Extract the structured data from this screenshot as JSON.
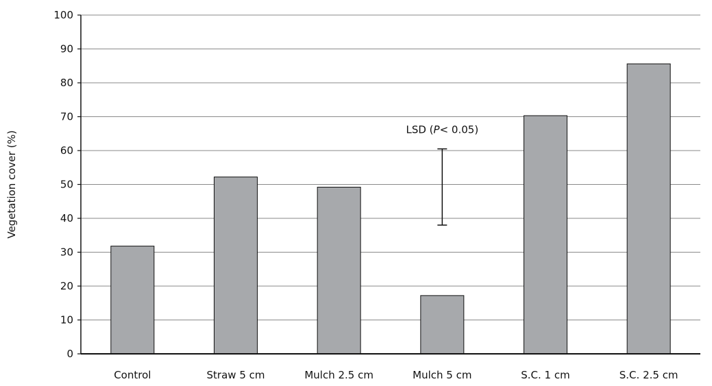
{
  "chart_data": {
    "type": "bar",
    "categories": [
      "Control",
      "Straw 5 cm",
      "Mulch 2.5 cm",
      "Mulch 5 cm",
      "S.C. 1 cm",
      "S.C. 2.5 cm"
    ],
    "values": [
      31.8,
      52.2,
      49.2,
      17.2,
      70.3,
      85.6
    ],
    "title": "",
    "xlabel": "",
    "ylabel": "Vegetation cover (%)",
    "ylim": [
      0,
      100
    ],
    "yticks": [
      0,
      10,
      20,
      30,
      40,
      50,
      60,
      70,
      80,
      90,
      100
    ],
    "grid": true,
    "bar_color": "#a7a9ac",
    "annotation": {
      "label_prefix": "LSD (",
      "label_italic": "P",
      "label_suffix": "< 0.05)",
      "range": [
        38,
        60.5
      ],
      "category_position": 3
    }
  }
}
